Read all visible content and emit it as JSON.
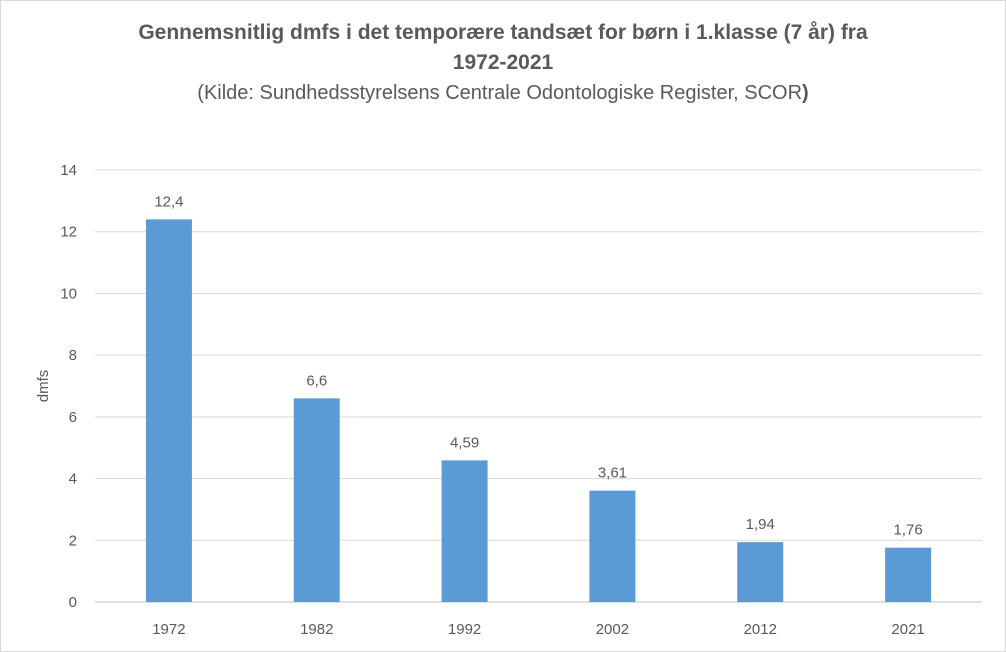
{
  "chart_data": {
    "type": "bar",
    "title_line1": "Gennemsnitlig dmfs i det temporære tandsæt for børn i 1.klasse (7 år) fra",
    "title_line2": "1972-2021",
    "subtitle_main": "(Kilde: Sundhedsstyrelsens Centrale Odontologiske Register, SCOR",
    "subtitle_end": ")",
    "xlabel": "",
    "ylabel": "dmfs",
    "ylim": [
      0,
      14
    ],
    "yticks": [
      "0",
      "2",
      "4",
      "6",
      "8",
      "10",
      "12",
      "14"
    ],
    "ytick_values": [
      0,
      2,
      4,
      6,
      8,
      10,
      12,
      14
    ],
    "categories": [
      "1972",
      "1982",
      "1992",
      "2002",
      "2012",
      "2021"
    ],
    "values": [
      12.4,
      6.6,
      4.59,
      3.61,
      1.94,
      1.76
    ],
    "data_labels": [
      "12,4",
      "6,6",
      "4,59",
      "3,61",
      "1,94",
      "1,76"
    ],
    "grid": true,
    "legend": "none",
    "colors": {
      "bar": "#5b9bd5",
      "grid": "#d9d9d9",
      "axis": "#bfbfbf",
      "text": "#595959"
    }
  }
}
